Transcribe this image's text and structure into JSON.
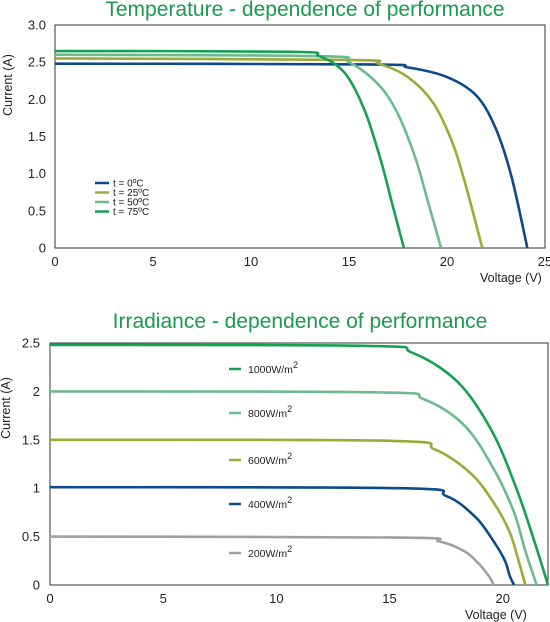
{
  "chart_data": [
    {
      "type": "line",
      "title": "Temperature - dependence of performance",
      "xlabel": "Voltage (V)",
      "ylabel": "Current (A)",
      "xlim": [
        0,
        25
      ],
      "ylim": [
        0,
        3.0
      ],
      "x_ticks": [
        "0",
        "5",
        "10",
        "15",
        "20",
        "25"
      ],
      "y_ticks": [
        "0",
        "0.5",
        "1.0",
        "1.5",
        "2.0",
        "2.5",
        "3.0"
      ],
      "grid": false,
      "legend_position": "lower-left",
      "series": [
        {
          "name": "t = 0ºC",
          "color": "#0d4a8a",
          "isc": 2.48,
          "voc": 24.1,
          "knee_start": 17.0,
          "x": [
            0,
            16,
            18,
            20,
            21.5,
            22.5,
            23.3,
            24.1
          ],
          "y": [
            2.48,
            2.47,
            2.43,
            2.3,
            2.05,
            1.6,
            0.95,
            0
          ]
        },
        {
          "name": "t = 25ºC",
          "color": "#9aab3a",
          "isc": 2.55,
          "voc": 21.8,
          "knee_start": 15.5,
          "x": [
            0,
            15,
            16.5,
            18,
            19.3,
            20.3,
            21.0,
            21.8
          ],
          "y": [
            2.55,
            2.53,
            2.48,
            2.3,
            1.95,
            1.4,
            0.8,
            0
          ]
        },
        {
          "name": "t = 50ºC",
          "color": "#6dba8e",
          "isc": 2.6,
          "voc": 19.7,
          "knee_start": 13.5,
          "x": [
            0,
            13.5,
            15,
            16.5,
            17.5,
            18.4,
            19.0,
            19.7
          ],
          "y": [
            2.6,
            2.58,
            2.5,
            2.2,
            1.8,
            1.2,
            0.65,
            0
          ]
        },
        {
          "name": "t = 75ºC",
          "color": "#15a052",
          "isc": 2.65,
          "voc": 17.8,
          "knee_start": 12.0,
          "x": [
            0,
            12,
            13.5,
            14.8,
            15.8,
            16.6,
            17.2,
            17.8
          ],
          "y": [
            2.65,
            2.64,
            2.58,
            2.35,
            1.85,
            1.2,
            0.6,
            0
          ]
        }
      ]
    },
    {
      "type": "line",
      "title": "Irradiance - dependence of performance",
      "xlabel": "Voltage (V)",
      "ylabel": "Current (A)",
      "xlim": [
        0,
        22
      ],
      "ylim": [
        0,
        2.5
      ],
      "x_ticks": [
        "0",
        "5",
        "10",
        "15",
        "20"
      ],
      "y_ticks": [
        "0",
        "0.5",
        "1",
        "1.5",
        "2",
        "2.5"
      ],
      "grid": false,
      "series": [
        {
          "name": "1000W/m",
          "sup": "2",
          "color": "#15a052",
          "isc": 2.48,
          "voc": 22.0,
          "x": [
            0,
            14,
            16,
            18,
            19.5,
            20.6,
            21.4,
            22.0
          ],
          "y": [
            2.48,
            2.47,
            2.4,
            2.1,
            1.6,
            1.0,
            0.45,
            0
          ]
        },
        {
          "name": "800W/m",
          "sup": "2",
          "color": "#6dba8e",
          "isc": 2.0,
          "voc": 21.5,
          "x": [
            0,
            14.5,
            16.5,
            18.3,
            19.6,
            20.5,
            21.0,
            21.5
          ],
          "y": [
            2.0,
            1.99,
            1.92,
            1.65,
            1.2,
            0.75,
            0.35,
            0
          ]
        },
        {
          "name": "600W/m",
          "sup": "2",
          "color": "#9aab3a",
          "isc": 1.5,
          "voc": 21.0,
          "x": [
            0,
            15,
            17,
            18.6,
            19.6,
            20.3,
            20.7,
            21.0
          ],
          "y": [
            1.5,
            1.49,
            1.4,
            1.15,
            0.85,
            0.55,
            0.25,
            0
          ]
        },
        {
          "name": "400W/m",
          "sup": "2",
          "color": "#0d4a8a",
          "isc": 1.01,
          "voc": 20.5,
          "x": [
            0,
            15.5,
            17.5,
            18.8,
            19.6,
            20.1,
            20.3,
            20.5
          ],
          "y": [
            1.01,
            1.0,
            0.92,
            0.7,
            0.45,
            0.25,
            0.1,
            0
          ]
        },
        {
          "name": "200W/m",
          "sup": "2",
          "color": "#a0a0a0",
          "isc": 0.5,
          "voc": 19.6,
          "x": [
            0,
            15.5,
            17.2,
            18.3,
            18.9,
            19.3,
            19.5,
            19.6
          ],
          "y": [
            0.5,
            0.49,
            0.45,
            0.35,
            0.23,
            0.12,
            0.05,
            0
          ]
        }
      ]
    }
  ]
}
